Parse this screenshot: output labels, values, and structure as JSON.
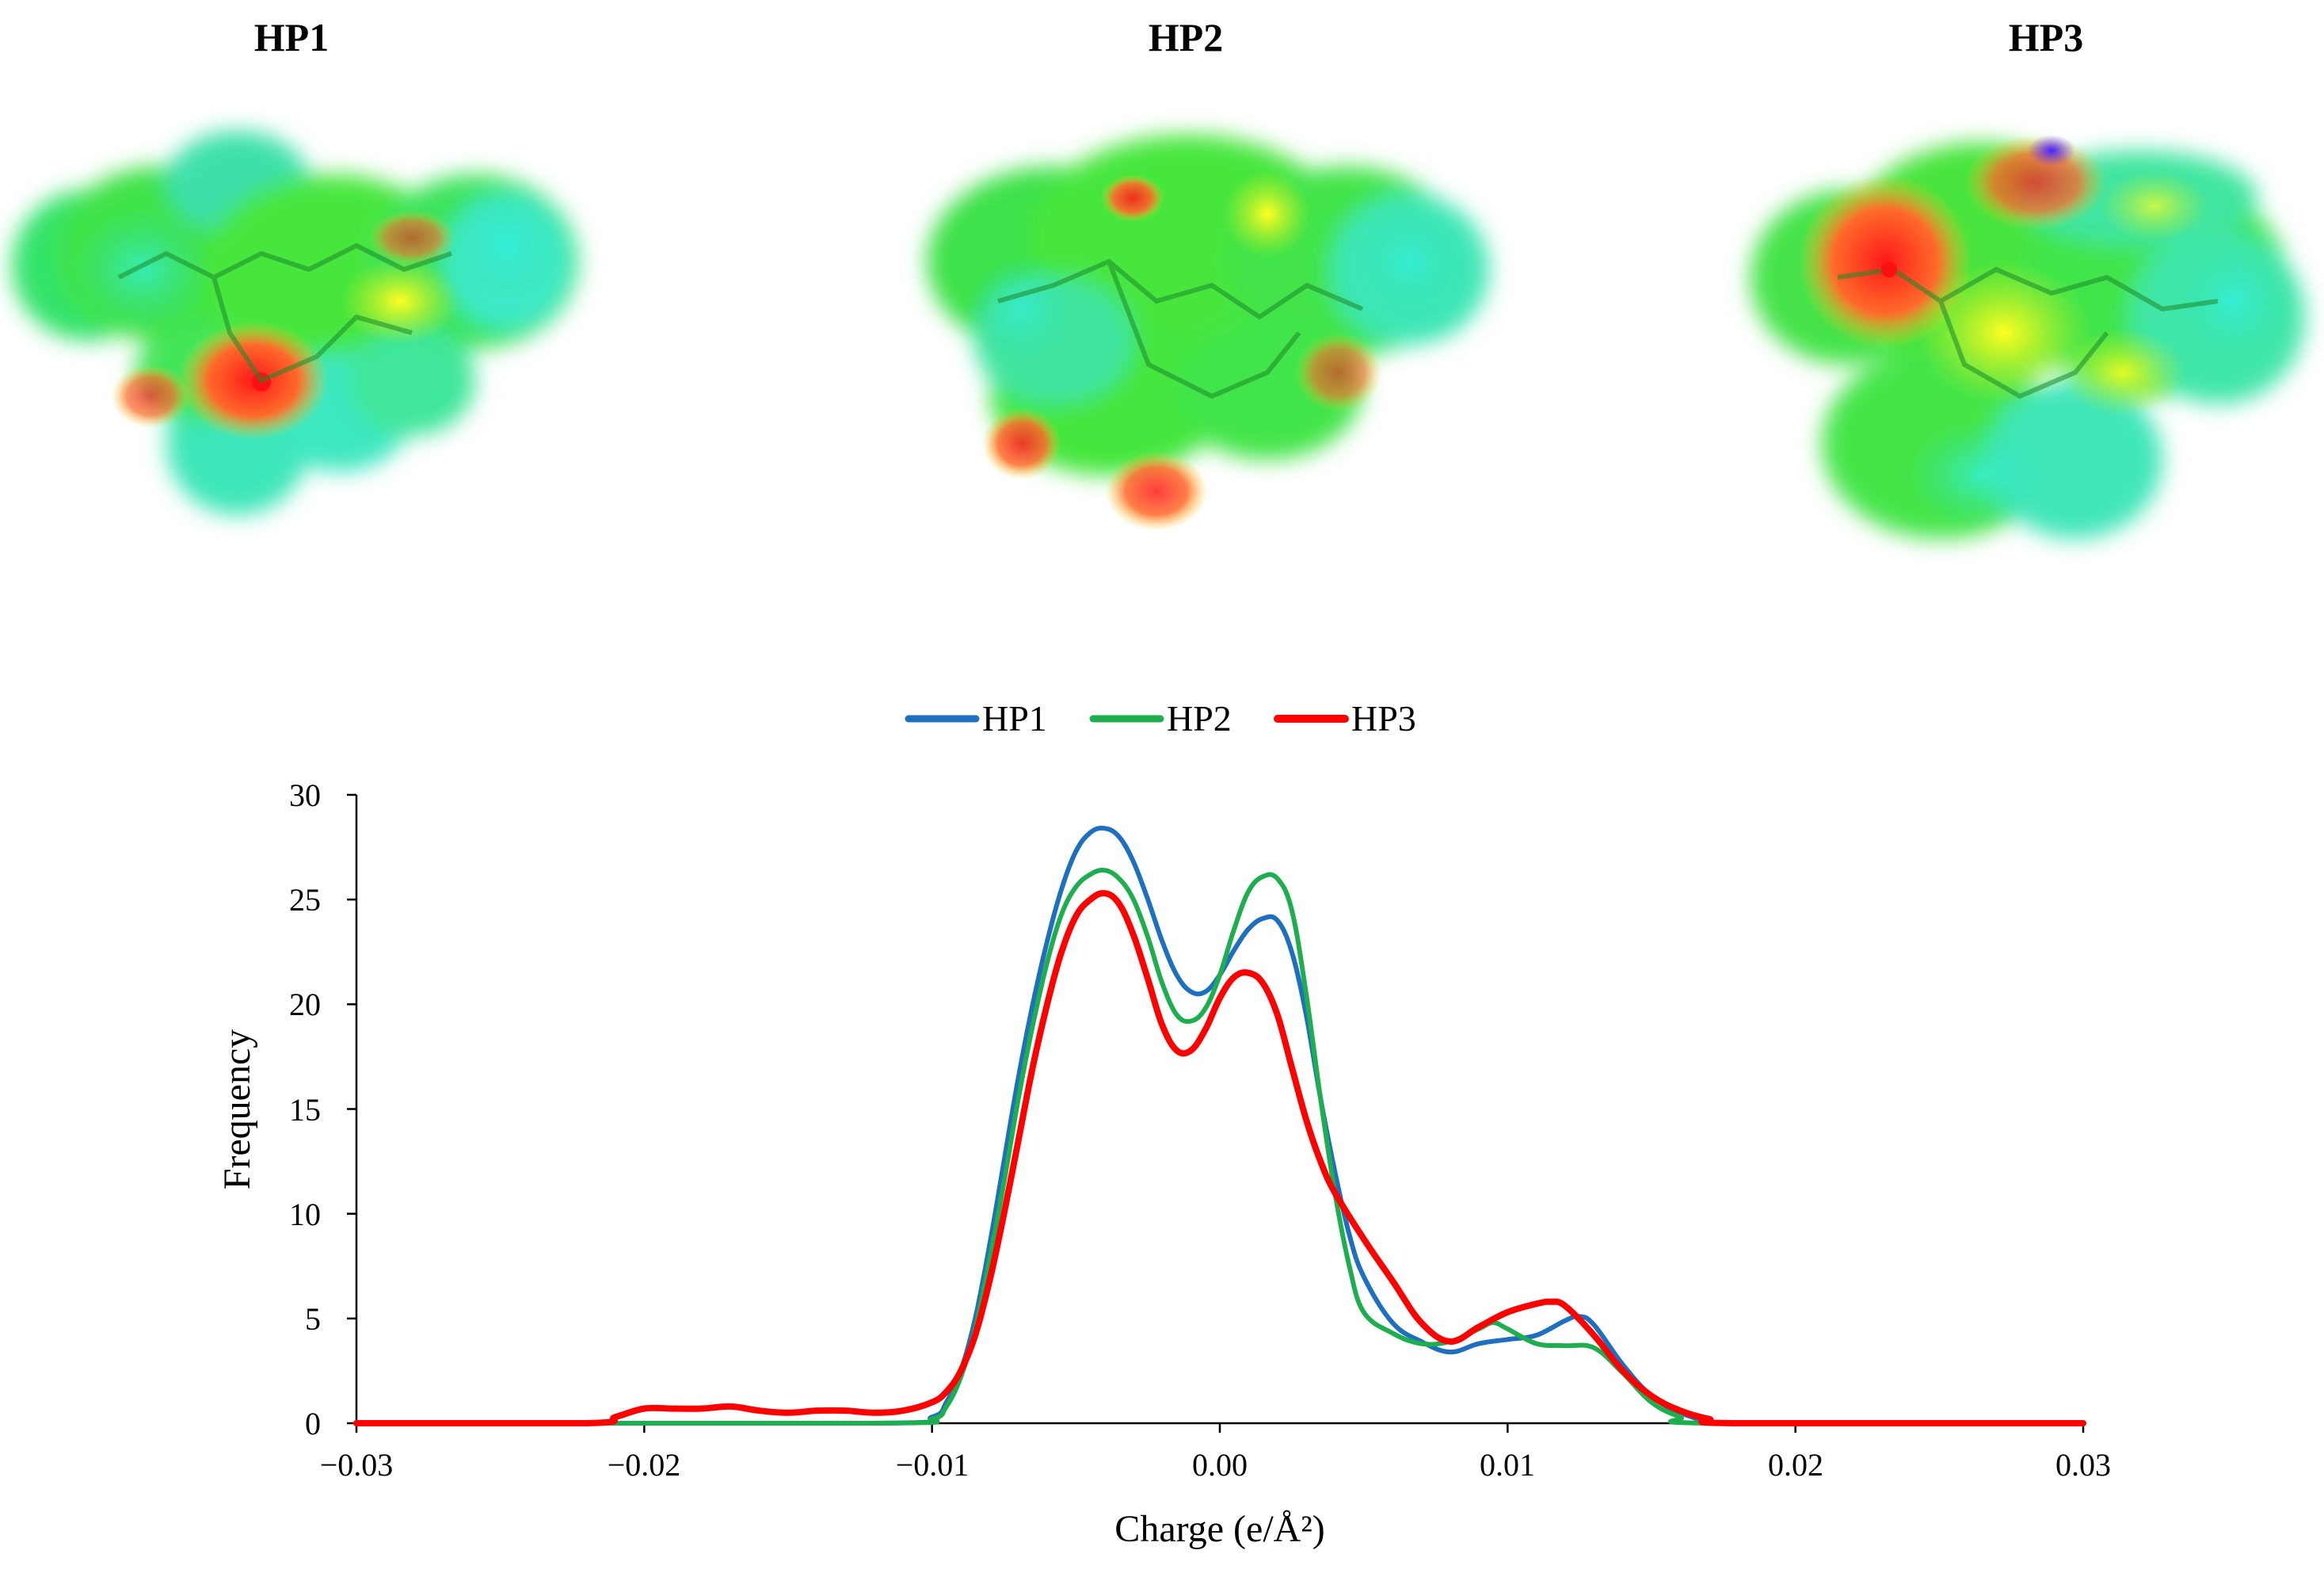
{
  "molecules": [
    {
      "label": "HP1"
    },
    {
      "label": "HP2"
    },
    {
      "label": "HP3"
    }
  ],
  "colors": {
    "HP1": "#1f6fbf",
    "HP2": "#1fae4f",
    "HP3": "#ff0000",
    "surface_green": "#33dd33",
    "surface_cyan": "#33eecc",
    "surface_yellow": "#eeee22",
    "surface_red": "#ff3322",
    "surface_blue": "#5533ee"
  },
  "chart_data": {
    "type": "line",
    "xlabel": "Charge (e/Å²)",
    "ylabel": "Frequency",
    "xlim": [
      -0.03,
      0.03
    ],
    "ylim": [
      0,
      30
    ],
    "xticks": [
      "−0.03",
      "−0.02",
      "−0.01",
      "0.00",
      "0.01",
      "0.02",
      "0.03"
    ],
    "yticks": [
      "0",
      "5",
      "10",
      "15",
      "20",
      "25",
      "30"
    ],
    "legend_position": "top-center",
    "series": [
      {
        "name": "HP1",
        "x": [
          -0.03,
          -0.012,
          -0.01,
          -0.0095,
          -0.009,
          -0.0085,
          -0.008,
          -0.0075,
          -0.007,
          -0.0065,
          -0.006,
          -0.0055,
          -0.005,
          -0.0045,
          -0.004,
          -0.0035,
          -0.003,
          -0.0025,
          -0.002,
          -0.0015,
          -0.001,
          -0.0005,
          0.0,
          0.0005,
          0.001,
          0.0015,
          0.002,
          0.0025,
          0.003,
          0.0035,
          0.004,
          0.0045,
          0.005,
          0.006,
          0.007,
          0.008,
          0.009,
          0.01,
          0.011,
          0.012,
          0.0125,
          0.013,
          0.014,
          0.015,
          0.016,
          0.017,
          0.018,
          0.03
        ],
        "y": [
          0,
          0,
          0.3,
          1.0,
          2.5,
          5.0,
          8.5,
          12.5,
          16.5,
          20.0,
          23.0,
          25.5,
          27.3,
          28.2,
          28.4,
          28.0,
          26.8,
          25.0,
          23.0,
          21.4,
          20.6,
          20.6,
          21.4,
          22.6,
          23.6,
          24.1,
          24.0,
          22.5,
          19.5,
          15.5,
          12.0,
          9.0,
          7.0,
          4.8,
          3.9,
          3.4,
          3.8,
          4.0,
          4.2,
          4.9,
          5.1,
          4.7,
          2.8,
          1.3,
          0.5,
          0.1,
          0,
          0
        ]
      },
      {
        "name": "HP2",
        "x": [
          -0.03,
          -0.012,
          -0.01,
          -0.0095,
          -0.009,
          -0.0085,
          -0.008,
          -0.0075,
          -0.007,
          -0.0065,
          -0.006,
          -0.0055,
          -0.005,
          -0.0045,
          -0.004,
          -0.0035,
          -0.003,
          -0.0025,
          -0.002,
          -0.0015,
          -0.001,
          -0.0005,
          0.0,
          0.0005,
          0.001,
          0.0015,
          0.002,
          0.0025,
          0.003,
          0.0035,
          0.004,
          0.0045,
          0.005,
          0.006,
          0.007,
          0.008,
          0.009,
          0.0095,
          0.01,
          0.011,
          0.012,
          0.013,
          0.014,
          0.015,
          0.016,
          0.017,
          0.03
        ],
        "y": [
          0,
          0,
          0.2,
          0.8,
          2.2,
          4.5,
          7.8,
          11.5,
          15.5,
          19.0,
          22.0,
          24.3,
          25.6,
          26.2,
          26.4,
          26.0,
          25.0,
          23.2,
          21.0,
          19.5,
          19.2,
          19.8,
          21.4,
          23.6,
          25.4,
          26.1,
          26.0,
          24.5,
          20.5,
          15.5,
          11.0,
          7.5,
          5.3,
          4.3,
          3.8,
          3.9,
          4.5,
          4.8,
          4.5,
          3.8,
          3.7,
          3.6,
          2.4,
          1.0,
          0.3,
          0,
          0
        ]
      },
      {
        "name": "HP3",
        "x": [
          -0.03,
          -0.022,
          -0.021,
          -0.02,
          -0.019,
          -0.018,
          -0.017,
          -0.016,
          -0.015,
          -0.014,
          -0.013,
          -0.012,
          -0.011,
          -0.01,
          -0.0095,
          -0.009,
          -0.0085,
          -0.008,
          -0.0075,
          -0.007,
          -0.0065,
          -0.006,
          -0.0055,
          -0.005,
          -0.0045,
          -0.004,
          -0.0035,
          -0.003,
          -0.0025,
          -0.002,
          -0.0015,
          -0.001,
          -0.0005,
          0.0,
          0.0005,
          0.001,
          0.0015,
          0.002,
          0.0025,
          0.003,
          0.0035,
          0.004,
          0.005,
          0.006,
          0.007,
          0.008,
          0.009,
          0.01,
          0.011,
          0.0115,
          0.012,
          0.013,
          0.014,
          0.015,
          0.016,
          0.017,
          0.018,
          0.03
        ],
        "y": [
          0,
          0,
          0.3,
          0.7,
          0.7,
          0.7,
          0.8,
          0.6,
          0.5,
          0.6,
          0.6,
          0.5,
          0.6,
          1.0,
          1.5,
          2.5,
          4.2,
          6.8,
          10.0,
          13.5,
          17.0,
          20.0,
          22.5,
          24.2,
          25.0,
          25.3,
          24.8,
          23.3,
          21.2,
          19.0,
          17.8,
          17.8,
          18.8,
          20.3,
          21.3,
          21.5,
          21.0,
          19.5,
          17.0,
          14.5,
          12.5,
          11.0,
          8.8,
          6.8,
          4.8,
          3.9,
          4.6,
          5.3,
          5.7,
          5.8,
          5.6,
          4.2,
          2.5,
          1.3,
          0.6,
          0.2,
          0,
          0
        ]
      }
    ]
  }
}
